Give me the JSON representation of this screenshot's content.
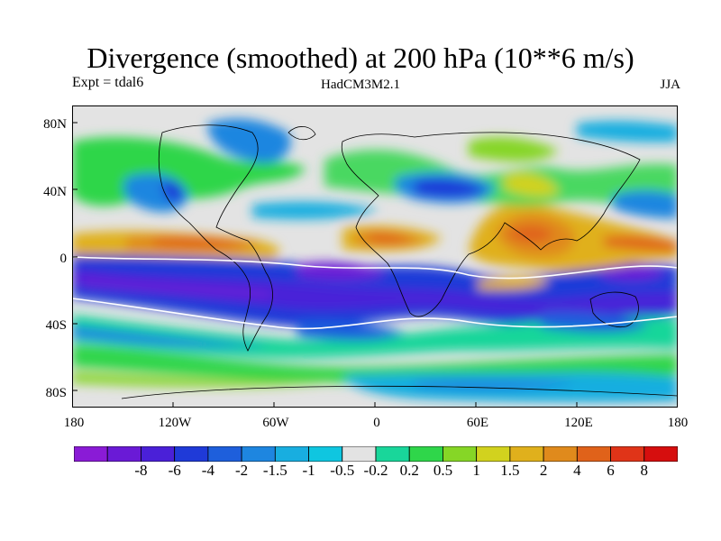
{
  "title": "Divergence (smoothed) at 200 hPa (10**6 m/s)",
  "experiment": "Expt = tdal6",
  "model": "HadCM3M2.1",
  "season": "JJA",
  "lat_labels": [
    "80N",
    "40N",
    "0",
    "40S",
    "80S"
  ],
  "lon_labels": [
    "180",
    "120W",
    "60W",
    "0",
    "60E",
    "120E",
    "180"
  ],
  "colorbar": {
    "colors": [
      "#8a1bd6",
      "#6a1ad6",
      "#4a20d8",
      "#1f3ad8",
      "#1e5fdc",
      "#1e86e0",
      "#18aee0",
      "#0fc6e0",
      "#e3e3e3",
      "#19d69a",
      "#2fd64a",
      "#86d626",
      "#d2d21e",
      "#e0b01c",
      "#e08a1c",
      "#e0621a",
      "#e03418",
      "#d60e0e"
    ],
    "labels": [
      "-8",
      "-6",
      "-4",
      "-2",
      "-1.5",
      "-1",
      "-0.5",
      "-0.2",
      "0.2",
      "0.5",
      "1",
      "1.5",
      "2",
      "4",
      "6",
      "8"
    ]
  }
}
